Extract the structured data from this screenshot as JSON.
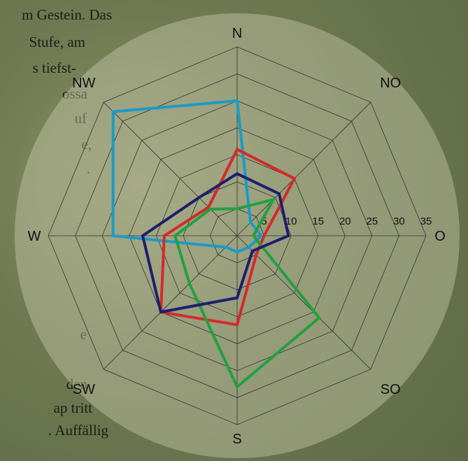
{
  "background_text": [
    "m Gestein. Das",
    "Stufe,  am",
    "s tiefst-",
    "ossa",
    "uf",
    "e,",
    ".",
    "e",
    "den",
    "ap  tritt",
    ". Auffällig"
  ],
  "chart_data": {
    "type": "radar",
    "categories": [
      "N",
      "NO",
      "O",
      "SO",
      "S",
      "SW",
      "W",
      "NW"
    ],
    "rlim": [
      0,
      35
    ],
    "rticks": [
      5,
      10,
      15,
      20,
      25,
      30,
      35
    ],
    "series": [
      {
        "color": "#1a9bc8",
        "values": [
          25,
          3.5,
          4.5,
          3,
          3,
          3,
          23,
          32.5
        ]
      },
      {
        "color": "#d42a2a",
        "values": [
          16,
          15,
          5,
          5,
          16.5,
          20,
          13.5,
          7.5
        ]
      },
      {
        "color": "#22a040",
        "values": [
          5,
          9.5,
          3,
          21.5,
          28,
          12.5,
          11.5,
          7
        ]
      },
      {
        "color": "#1e1e6e",
        "values": [
          11.5,
          11,
          9.5,
          4,
          11.5,
          20,
          17.5,
          10
        ]
      }
    ]
  }
}
